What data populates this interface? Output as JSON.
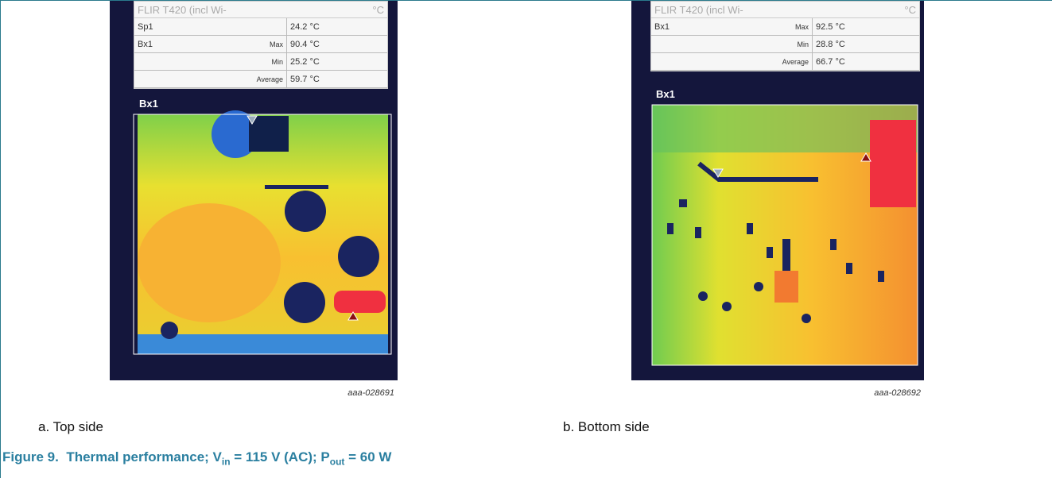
{
  "panels": [
    {
      "table": {
        "title": "FLIR T420 (incl Wi-",
        "unit": "°C",
        "rows": [
          {
            "name": "Sp1",
            "value": "24.2 °C"
          },
          {
            "name": "Bx1",
            "stat": "Max",
            "value": "90.4 °C"
          },
          {
            "stat": "Min",
            "value": "25.2 °C"
          },
          {
            "stat": "Average",
            "value": "59.7 °C"
          }
        ]
      },
      "box_label": "Bx1",
      "image_id": "aaa-028691",
      "caption": "a. Top side"
    },
    {
      "table": {
        "title": "FLIR T420 (incl Wi-",
        "unit": "°C",
        "rows": [
          {
            "name": "Bx1",
            "stat": "Max",
            "value": "92.5 °C"
          },
          {
            "stat": "Min",
            "value": "28.8 °C"
          },
          {
            "stat": "Average",
            "value": "66.7 °C"
          }
        ]
      },
      "box_label": "Bx1",
      "image_id": "aaa-028692",
      "caption": "b. Bottom side"
    }
  ],
  "figure_caption": {
    "number": "Figure 9.",
    "text": "Thermal performance; V",
    "sub1": "in",
    "text2": " = 115 V (AC); P",
    "sub2": "out",
    "text3": " = 60 W"
  }
}
